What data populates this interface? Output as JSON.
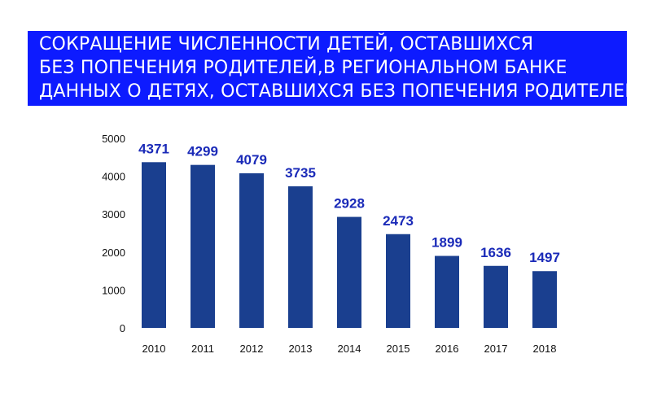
{
  "title": {
    "lines": [
      "СОКРАЩЕНИЕ ЧИСЛЕННОСТИ ДЕТЕЙ, ОСТАВШИХСЯ",
      "БЕЗ ПОПЕЧЕНИЯ РОДИТЕЛЕЙ,В РЕГИОНАЛЬНОМ БАНКЕ",
      "ДАННЫХ О ДЕТЯХ, ОСТАВШИХСЯ БЕЗ ПОПЕЧЕНИЯ РОДИТЕЛЕЙ"
    ]
  },
  "colors": {
    "banner": "#0d1bff",
    "bar": "#1a3f8f",
    "data_label": "#1a2ab8"
  },
  "chart_data": {
    "type": "bar",
    "title": "СОКРАЩЕНИЕ ЧИСЛЕННОСТИ ДЕТЕЙ, ОСТАВШИХСЯ БЕЗ ПОПЕЧЕНИЯ РОДИТЕЛЕЙ,В РЕГИОНАЛЬНОМ БАНКЕ ДАННЫХ О ДЕТЯХ, ОСТАВШИХСЯ БЕЗ ПОПЕЧЕНИЯ РОДИТЕЛЕЙ",
    "categories": [
      "2010",
      "2011",
      "2012",
      "2013",
      "2014",
      "2015",
      "2016",
      "2017",
      "2018"
    ],
    "values": [
      4371,
      4299,
      4079,
      3735,
      2928,
      2473,
      1899,
      1636,
      1497
    ],
    "data_labels": [
      "4371",
      "4299",
      "4079",
      "3735",
      "2928",
      "2473",
      "1899",
      "1636",
      "1497"
    ],
    "y_ticks": [
      0,
      1000,
      2000,
      3000,
      4000,
      5000
    ],
    "y_tick_labels": [
      "0",
      "1000",
      "2000",
      "3000",
      "4000",
      "5000"
    ],
    "ylim": [
      0,
      5000
    ],
    "grid": false,
    "legend": "none",
    "xlabel": "",
    "ylabel": ""
  }
}
